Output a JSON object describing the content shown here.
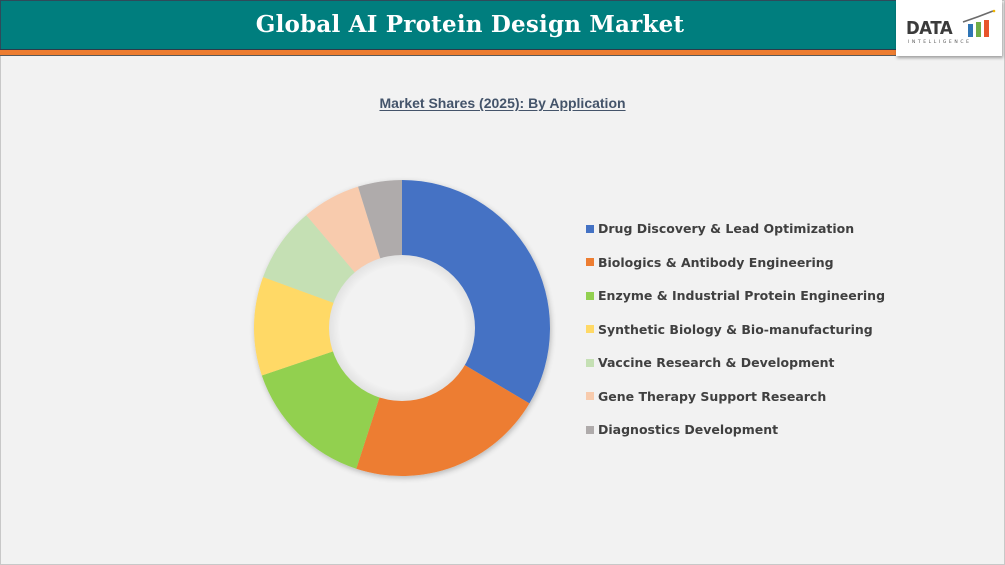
{
  "header": {
    "title": "Global AI Protein Design Market",
    "logo": {
      "text": "DATA",
      "subtext": "INTELLIGENCE",
      "bar_colors": [
        "#2e75b6",
        "#70ad47",
        "#e8542a"
      ]
    },
    "colors": {
      "bar": "#007e7e",
      "accent": "#ed7d31"
    }
  },
  "chart_data": {
    "type": "pie",
    "subtype": "donut",
    "title": "Market Shares (2025): By Application",
    "categories": [
      "Drug Discovery & Lead Optimization",
      "Biologics & Antibody Engineering",
      "Enzyme & Industrial Protein Engineering",
      "Synthetic Biology & Bio-manufacturing",
      "Vaccine Research & Development",
      "Gene Therapy Support Research",
      "Diagnostics Development"
    ],
    "values": [
      33.5,
      21.5,
      14.8,
      10.8,
      8.2,
      6.4,
      4.8
    ],
    "unit": "%",
    "colors": [
      "#4472c4",
      "#ed7d31",
      "#92d050",
      "#ffd966",
      "#c5e0b4",
      "#f8cbad",
      "#afabab"
    ],
    "legend_position": "right",
    "start_angle_deg": 0,
    "direction": "clockwise",
    "data_labels": false
  },
  "legend": {
    "items": [
      {
        "label": "Drug Discovery & Lead Optimization",
        "color": "#4472c4"
      },
      {
        "label": "Biologics & Antibody Engineering",
        "color": "#ed7d31"
      },
      {
        "label": "Enzyme & Industrial Protein Engineering",
        "color": "#92d050"
      },
      {
        "label": "Synthetic Biology & Bio-manufacturing",
        "color": "#ffd966"
      },
      {
        "label": "Vaccine Research & Development",
        "color": "#c5e0b4"
      },
      {
        "label": "Gene Therapy Support Research",
        "color": "#f8cbad"
      },
      {
        "label": "Diagnostics Development",
        "color": "#afabab"
      }
    ]
  }
}
